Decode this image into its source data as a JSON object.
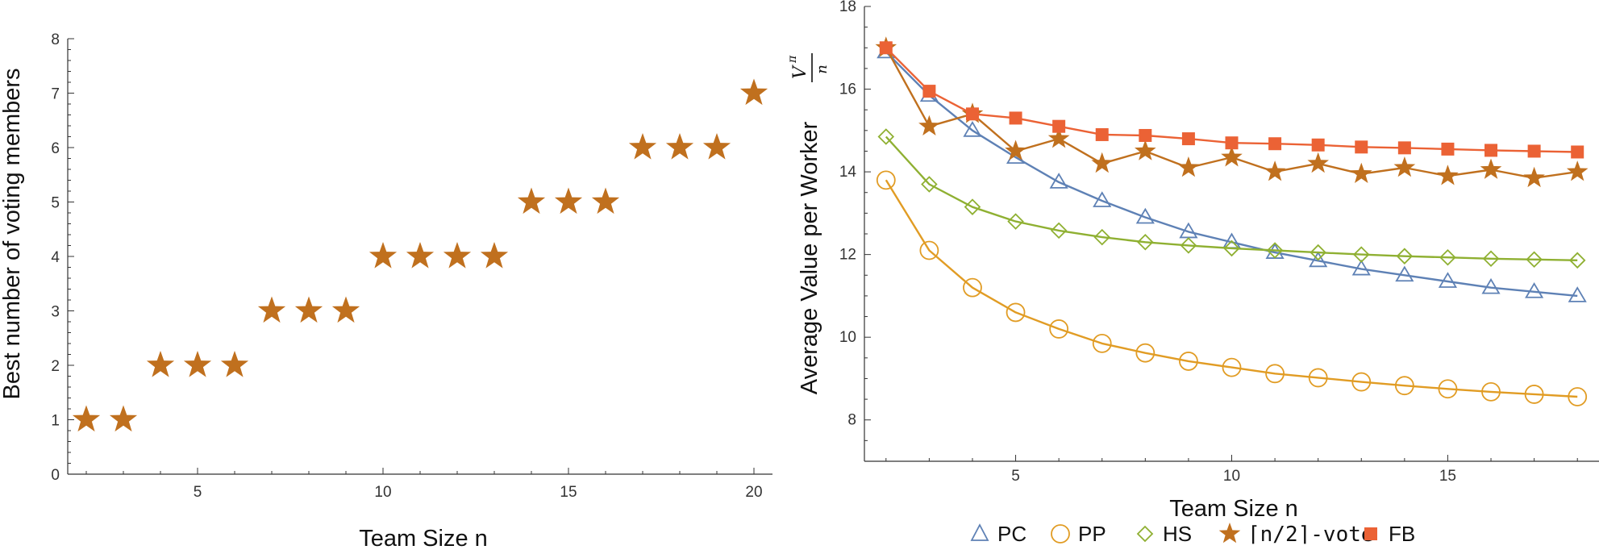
{
  "chart_data": [
    {
      "type": "scatter",
      "xlabel": "Team Size n",
      "ylabel": "Best number of voting members",
      "xlim": [
        1.5,
        20.5
      ],
      "ylim": [
        0,
        8
      ],
      "xticks": [
        "5",
        "10",
        "15",
        "20"
      ],
      "yticks": [
        "0",
        "1",
        "2",
        "3",
        "4",
        "5",
        "6",
        "7",
        "8"
      ],
      "marker": "filled-star",
      "color": "#C0701E",
      "x": [
        2,
        3,
        4,
        5,
        6,
        7,
        8,
        9,
        10,
        11,
        12,
        13,
        14,
        15,
        16,
        17,
        18,
        19,
        20
      ],
      "y": [
        1,
        1,
        2,
        2,
        2,
        3,
        3,
        3,
        4,
        4,
        4,
        4,
        5,
        5,
        5,
        6,
        6,
        6,
        7
      ]
    },
    {
      "type": "line",
      "xlabel": "Team Size n",
      "ylabel": "Average Value per Worker",
      "ylabel_fraction": {
        "numerator": "V",
        "superscript": "π",
        "denominator": "n"
      },
      "xlim": [
        1.5,
        18.5
      ],
      "ylim": [
        7,
        18
      ],
      "xticks": [
        "5",
        "10",
        "15"
      ],
      "yticks": [
        "8",
        "10",
        "12",
        "14",
        "16",
        "18"
      ],
      "x": [
        2,
        3,
        4,
        5,
        6,
        7,
        8,
        9,
        10,
        11,
        12,
        13,
        14,
        15,
        16,
        17,
        18
      ],
      "series": [
        {
          "name": "PC",
          "marker": "open-triangle",
          "color": "#5E81B5",
          "values": [
            16.9,
            15.85,
            15.0,
            14.35,
            13.75,
            13.3,
            12.9,
            12.55,
            12.3,
            12.05,
            11.85,
            11.65,
            11.5,
            11.35,
            11.2,
            11.1,
            11.0
          ]
        },
        {
          "name": "PP",
          "marker": "open-circle",
          "color": "#E19C24",
          "values": [
            13.8,
            12.1,
            11.2,
            10.6,
            10.2,
            9.85,
            9.62,
            9.42,
            9.27,
            9.12,
            9.02,
            8.92,
            8.83,
            8.75,
            8.68,
            8.62,
            8.56
          ]
        },
        {
          "name": "HS",
          "marker": "open-diamond",
          "color": "#8FB032",
          "values": [
            14.85,
            13.7,
            13.15,
            12.8,
            12.58,
            12.42,
            12.3,
            12.22,
            12.15,
            12.1,
            12.05,
            12.0,
            11.96,
            11.93,
            11.9,
            11.88,
            11.86
          ]
        },
        {
          "name": "⌈n/2⌉-vote",
          "marker": "filled-star",
          "color": "#C0701E",
          "values": [
            17.0,
            15.1,
            15.4,
            14.5,
            14.8,
            14.2,
            14.5,
            14.1,
            14.35,
            14.0,
            14.2,
            13.95,
            14.1,
            13.9,
            14.05,
            13.85,
            14.0
          ]
        },
        {
          "name": "FB",
          "marker": "filled-square",
          "color": "#EB6235",
          "values": [
            17.0,
            15.95,
            15.4,
            15.3,
            15.1,
            14.9,
            14.88,
            14.8,
            14.7,
            14.68,
            14.65,
            14.6,
            14.58,
            14.55,
            14.52,
            14.5,
            14.48
          ]
        }
      ]
    }
  ]
}
